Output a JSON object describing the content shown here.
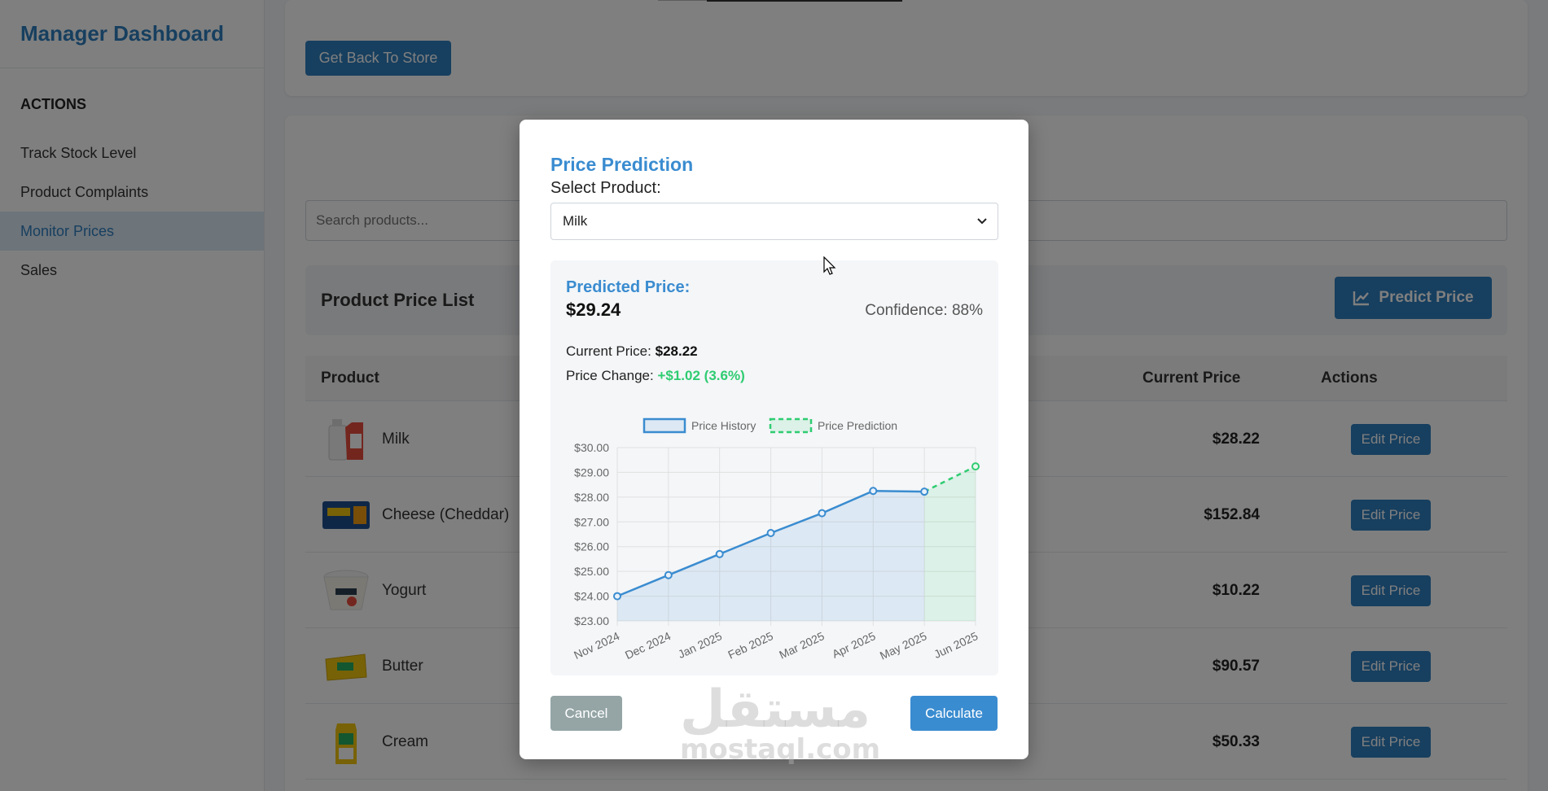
{
  "sidebar": {
    "brand": "Manager Dashboard",
    "section_title": "ACTIONS",
    "items": [
      {
        "label": "Track Stock Level",
        "active": false
      },
      {
        "label": "Product Complaints",
        "active": false
      },
      {
        "label": "Monitor Prices",
        "active": true
      },
      {
        "label": "Sales",
        "active": false
      }
    ]
  },
  "main": {
    "back_button": "Get Back To Store",
    "search_placeholder": "Search products...",
    "list_title": "Product Price List",
    "predict_button": "Predict Price",
    "columns": {
      "product": "Product",
      "current_price": "Current Price",
      "actions": "Actions"
    },
    "edit_label": "Edit Price",
    "rows": [
      {
        "name": "Milk",
        "price": "$28.22",
        "icon": "milk-carton-icon"
      },
      {
        "name": "Cheese (Cheddar)",
        "price": "$152.84",
        "icon": "cheese-package-icon"
      },
      {
        "name": "Yogurt",
        "price": "$10.22",
        "icon": "yogurt-cup-icon"
      },
      {
        "name": "Butter",
        "price": "$90.57",
        "icon": "butter-pack-icon"
      },
      {
        "name": "Cream",
        "price": "$50.33",
        "icon": "cream-carton-icon"
      }
    ]
  },
  "modal": {
    "title": "Price Prediction",
    "select_label": "Select Product:",
    "selected_product": "Milk",
    "predicted_label": "Predicted Price:",
    "predicted_value": "$29.24",
    "confidence": "Confidence: 88%",
    "current_price_label": "Current Price:",
    "current_price_value": "$28.22",
    "price_change_label": "Price Change:",
    "price_change_value": "+$1.02 (3.6%)",
    "cancel": "Cancel",
    "calculate": "Calculate"
  },
  "watermark": {
    "arabic": "مستقل",
    "latin": "mostaql.com"
  },
  "colors": {
    "accent": "#2f7fbf",
    "history": "#3a8cd0",
    "prediction": "#2ecc71",
    "cancel": "#95a5a6"
  },
  "chart_data": {
    "type": "line",
    "categories": [
      "Nov 2024",
      "Dec 2024",
      "Jan 2025",
      "Feb 2025",
      "Mar 2025",
      "Apr 2025",
      "May 2025",
      "Jun 2025"
    ],
    "series": [
      {
        "name": "Price History",
        "values": [
          24.0,
          24.85,
          25.7,
          26.55,
          27.35,
          28.25,
          28.22,
          null
        ],
        "style": "solid",
        "color": "#3a8cd0"
      },
      {
        "name": "Price Prediction",
        "values": [
          null,
          null,
          null,
          null,
          null,
          null,
          28.22,
          29.24
        ],
        "style": "dashed",
        "color": "#2ecc71"
      }
    ],
    "yticks": [
      "$30.00",
      "$29.00",
      "$28.00",
      "$27.00",
      "$26.00",
      "$25.00",
      "$24.00",
      "$23.00"
    ],
    "ylim": [
      23,
      30
    ],
    "grid": true,
    "legend": "top-center"
  }
}
